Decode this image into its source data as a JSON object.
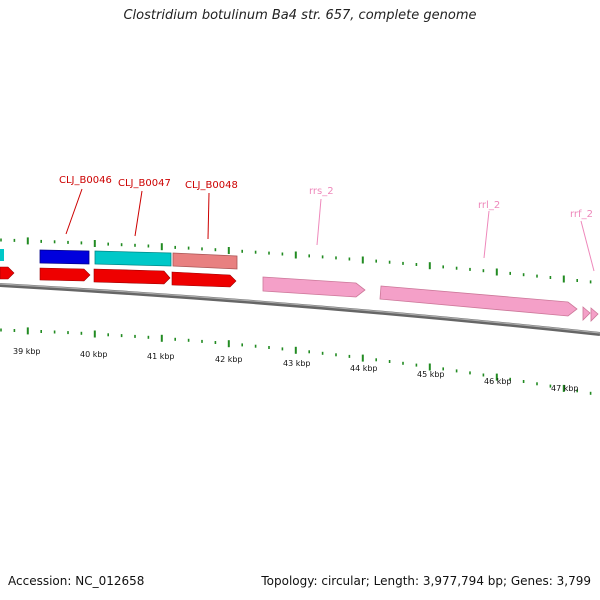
{
  "title": "Clostridium botulinum Ba4 str. 657, complete genome",
  "footer": {
    "accession": "Accession: NC_012658",
    "summary": "Topology: circular; Length: 3,977,794 bp; Genes: 3,799"
  },
  "colors": {
    "gene_label": "#cc0000",
    "rna_label": "#ee88bb",
    "cds_forward": "#ee0000",
    "blue_box": "#0000dd",
    "cyan_box": "#00c8c8",
    "salmon_box": "#e88080",
    "rna_arrow": "#f4a0c8",
    "tick": "#228b22",
    "backbone": "#888888"
  },
  "gene_labels": [
    "CLJ_B0046",
    "CLJ_B0047",
    "CLJ_B0048",
    "rrs_2",
    "rrl_2",
    "rrf_2"
  ],
  "scale_labels": [
    "39 kbp",
    "40 kbp",
    "41 kbp",
    "42 kbp",
    "43 kbp",
    "44 kbp",
    "45 kbp",
    "46 kbp",
    "47 kbp"
  ]
}
